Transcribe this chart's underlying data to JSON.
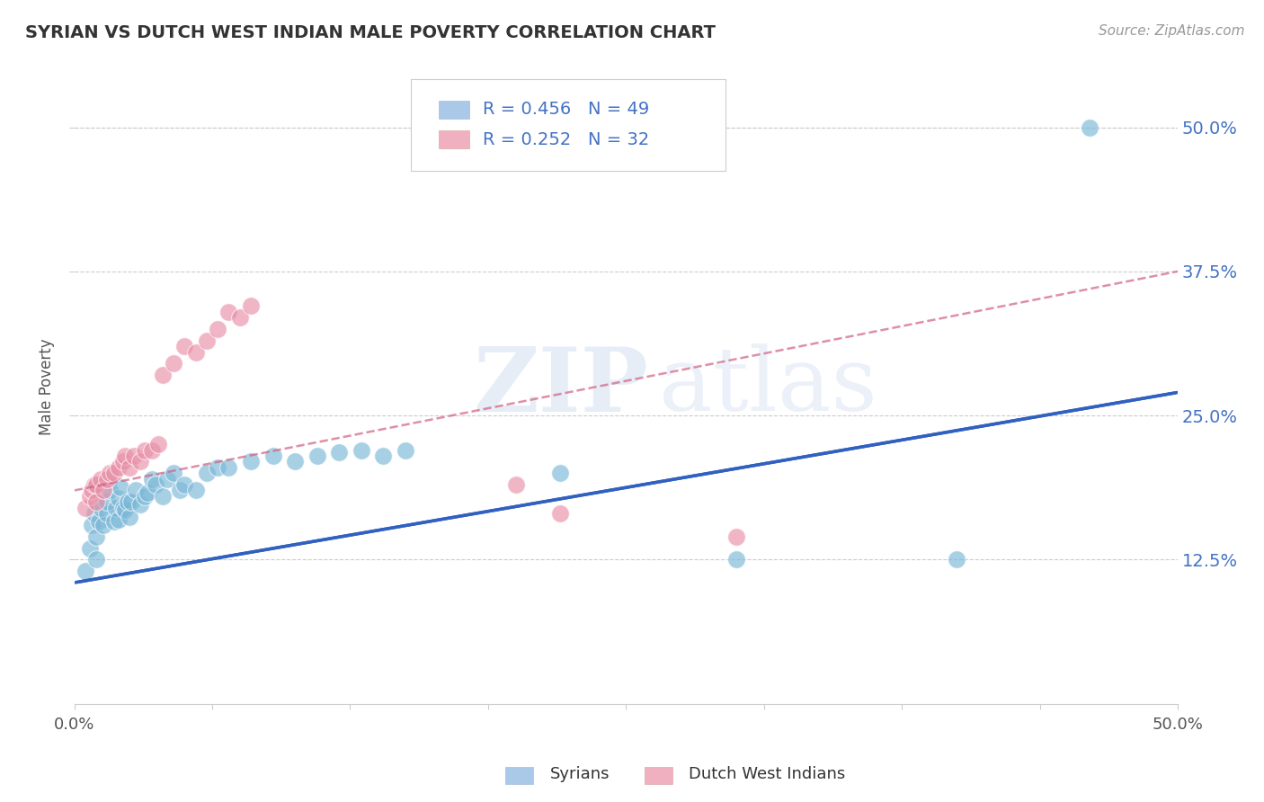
{
  "title": "SYRIAN VS DUTCH WEST INDIAN MALE POVERTY CORRELATION CHART",
  "source": "Source: ZipAtlas.com",
  "ylabel": "Male Poverty",
  "xlim": [
    0.0,
    0.5
  ],
  "ylim": [
    0.0,
    0.55
  ],
  "ytick_labels": [
    "12.5%",
    "25.0%",
    "37.5%",
    "50.0%"
  ],
  "ytick_positions": [
    0.125,
    0.25,
    0.375,
    0.5
  ],
  "xtick_vals": [
    0.0,
    0.0625,
    0.125,
    0.1875,
    0.25,
    0.3125,
    0.375,
    0.4375,
    0.5
  ],
  "background_color": "#ffffff",
  "grid_color": "#cccccc",
  "title_color": "#333333",
  "watermark_zip": "ZIP",
  "watermark_atlas": "atlas",
  "legend": {
    "syrian_r": "R = 0.456",
    "syrian_n": "N = 49",
    "dutch_r": "R = 0.252",
    "dutch_n": "N = 32",
    "syrian_color": "#aac8e8",
    "dutch_color": "#f0b0c0"
  },
  "syrian_color": "#7ab8d8",
  "dutch_color": "#e890a8",
  "syrian_line_color": "#3060c0",
  "dutch_line_color": "#d06080",
  "syrian_line": [
    0.0,
    0.5,
    0.105,
    0.27
  ],
  "dutch_line": [
    0.0,
    0.5,
    0.185,
    0.375
  ],
  "syrian_points": [
    [
      0.005,
      0.115
    ],
    [
      0.007,
      0.135
    ],
    [
      0.008,
      0.155
    ],
    [
      0.009,
      0.165
    ],
    [
      0.01,
      0.125
    ],
    [
      0.01,
      0.145
    ],
    [
      0.011,
      0.158
    ],
    [
      0.012,
      0.17
    ],
    [
      0.013,
      0.155
    ],
    [
      0.015,
      0.165
    ],
    [
      0.015,
      0.175
    ],
    [
      0.016,
      0.185
    ],
    [
      0.018,
      0.158
    ],
    [
      0.019,
      0.17
    ],
    [
      0.02,
      0.16
    ],
    [
      0.02,
      0.178
    ],
    [
      0.021,
      0.188
    ],
    [
      0.022,
      0.17
    ],
    [
      0.023,
      0.168
    ],
    [
      0.024,
      0.175
    ],
    [
      0.025,
      0.162
    ],
    [
      0.026,
      0.175
    ],
    [
      0.028,
      0.185
    ],
    [
      0.03,
      0.173
    ],
    [
      0.032,
      0.18
    ],
    [
      0.033,
      0.183
    ],
    [
      0.035,
      0.195
    ],
    [
      0.037,
      0.19
    ],
    [
      0.04,
      0.18
    ],
    [
      0.042,
      0.195
    ],
    [
      0.045,
      0.2
    ],
    [
      0.048,
      0.185
    ],
    [
      0.05,
      0.19
    ],
    [
      0.055,
      0.185
    ],
    [
      0.06,
      0.2
    ],
    [
      0.065,
      0.205
    ],
    [
      0.07,
      0.205
    ],
    [
      0.08,
      0.21
    ],
    [
      0.09,
      0.215
    ],
    [
      0.1,
      0.21
    ],
    [
      0.11,
      0.215
    ],
    [
      0.12,
      0.218
    ],
    [
      0.13,
      0.22
    ],
    [
      0.14,
      0.215
    ],
    [
      0.15,
      0.22
    ],
    [
      0.22,
      0.2
    ],
    [
      0.3,
      0.125
    ],
    [
      0.4,
      0.125
    ],
    [
      0.46,
      0.5
    ]
  ],
  "dutch_points": [
    [
      0.005,
      0.17
    ],
    [
      0.007,
      0.18
    ],
    [
      0.008,
      0.185
    ],
    [
      0.009,
      0.19
    ],
    [
      0.01,
      0.175
    ],
    [
      0.01,
      0.19
    ],
    [
      0.012,
      0.195
    ],
    [
      0.013,
      0.185
    ],
    [
      0.015,
      0.195
    ],
    [
      0.016,
      0.2
    ],
    [
      0.018,
      0.2
    ],
    [
      0.02,
      0.205
    ],
    [
      0.022,
      0.21
    ],
    [
      0.023,
      0.215
    ],
    [
      0.025,
      0.205
    ],
    [
      0.027,
      0.215
    ],
    [
      0.03,
      0.21
    ],
    [
      0.032,
      0.22
    ],
    [
      0.035,
      0.22
    ],
    [
      0.038,
      0.225
    ],
    [
      0.04,
      0.285
    ],
    [
      0.045,
      0.295
    ],
    [
      0.05,
      0.31
    ],
    [
      0.055,
      0.305
    ],
    [
      0.06,
      0.315
    ],
    [
      0.065,
      0.325
    ],
    [
      0.07,
      0.34
    ],
    [
      0.075,
      0.335
    ],
    [
      0.08,
      0.345
    ],
    [
      0.2,
      0.19
    ],
    [
      0.22,
      0.165
    ],
    [
      0.3,
      0.145
    ]
  ]
}
